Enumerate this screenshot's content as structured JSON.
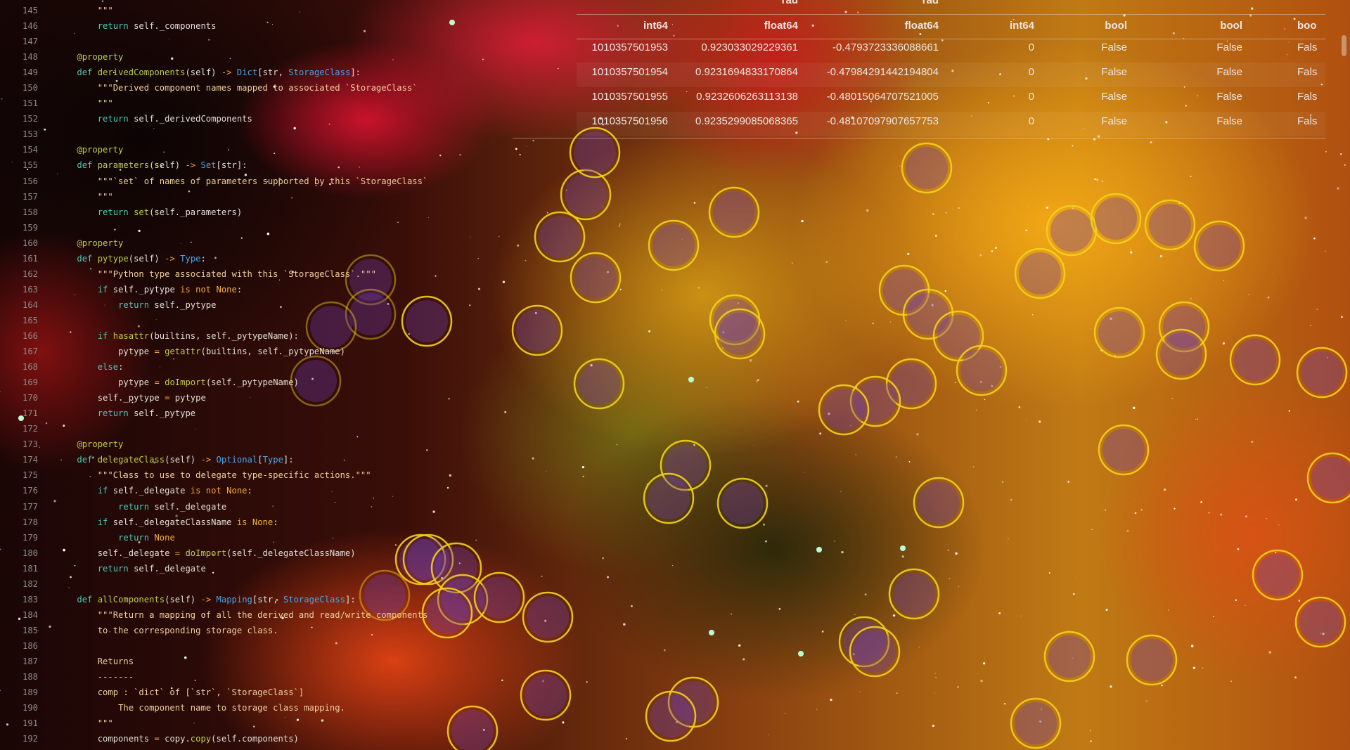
{
  "colors": {
    "keyword": "#4fc7b4",
    "function": "#bccd4a",
    "type": "#4aa3e8",
    "operator": "#f0a436",
    "string": "#efcf9c",
    "text": "#e2ddd6",
    "line_number": "#8d8a86",
    "circle": "#f2d21e"
  },
  "code": {
    "lines": [
      {
        "n": "145",
        "tokens": [
          [
            "        ",
            "plain"
          ],
          [
            "\"\"\"",
            "str"
          ]
        ]
      },
      {
        "n": "146",
        "tokens": [
          [
            "        ",
            "plain"
          ],
          [
            "return",
            "kw"
          ],
          [
            " self._components",
            "plain"
          ]
        ]
      },
      {
        "n": "147",
        "tokens": []
      },
      {
        "n": "148",
        "tokens": [
          [
            "    ",
            "plain"
          ],
          [
            "@property",
            "deco"
          ]
        ]
      },
      {
        "n": "149",
        "tokens": [
          [
            "    ",
            "plain"
          ],
          [
            "def",
            "kw"
          ],
          [
            " ",
            "plain"
          ],
          [
            "derivedComponents",
            "fn"
          ],
          [
            "(self) ",
            "plain"
          ],
          [
            "->",
            "op"
          ],
          [
            " ",
            "plain"
          ],
          [
            "Dict",
            "type"
          ],
          [
            "[str, ",
            "plain"
          ],
          [
            "StorageClass",
            "type"
          ],
          [
            "]:",
            "plain"
          ]
        ]
      },
      {
        "n": "150",
        "tokens": [
          [
            "        ",
            "plain"
          ],
          [
            "\"\"\"Derived component names mapped to associated `StorageClass`",
            "str"
          ]
        ]
      },
      {
        "n": "151",
        "tokens": [
          [
            "        ",
            "plain"
          ],
          [
            "\"\"\"",
            "str"
          ]
        ]
      },
      {
        "n": "152",
        "tokens": [
          [
            "        ",
            "plain"
          ],
          [
            "return",
            "kw"
          ],
          [
            " self._derivedComponents",
            "plain"
          ]
        ]
      },
      {
        "n": "153",
        "tokens": []
      },
      {
        "n": "154",
        "tokens": [
          [
            "    ",
            "plain"
          ],
          [
            "@property",
            "deco"
          ]
        ]
      },
      {
        "n": "155",
        "tokens": [
          [
            "    ",
            "plain"
          ],
          [
            "def",
            "kw"
          ],
          [
            " ",
            "plain"
          ],
          [
            "parameters",
            "fn"
          ],
          [
            "(self) ",
            "plain"
          ],
          [
            "->",
            "op"
          ],
          [
            " ",
            "plain"
          ],
          [
            "Set",
            "type"
          ],
          [
            "[str]:",
            "plain"
          ]
        ]
      },
      {
        "n": "156",
        "tokens": [
          [
            "        ",
            "plain"
          ],
          [
            "\"\"\"`set` of names of parameters supported by this `StorageClass`",
            "str"
          ]
        ]
      },
      {
        "n": "157",
        "tokens": [
          [
            "        ",
            "plain"
          ],
          [
            "\"\"\"",
            "str"
          ]
        ]
      },
      {
        "n": "158",
        "tokens": [
          [
            "        ",
            "plain"
          ],
          [
            "return",
            "kw"
          ],
          [
            " ",
            "plain"
          ],
          [
            "set",
            "fn"
          ],
          [
            "(self._parameters)",
            "plain"
          ]
        ]
      },
      {
        "n": "159",
        "tokens": []
      },
      {
        "n": "160",
        "tokens": [
          [
            "    ",
            "plain"
          ],
          [
            "@property",
            "deco"
          ]
        ]
      },
      {
        "n": "161",
        "tokens": [
          [
            "    ",
            "plain"
          ],
          [
            "def",
            "kw"
          ],
          [
            " ",
            "plain"
          ],
          [
            "pytype",
            "fn"
          ],
          [
            "(self) ",
            "plain"
          ],
          [
            "->",
            "op"
          ],
          [
            " ",
            "plain"
          ],
          [
            "Type",
            "type"
          ],
          [
            ":",
            "plain"
          ]
        ]
      },
      {
        "n": "162",
        "tokens": [
          [
            "        ",
            "plain"
          ],
          [
            "\"\"\"Python type associated with this `StorageClass`.\"\"\"",
            "str"
          ]
        ]
      },
      {
        "n": "163",
        "tokens": [
          [
            "        ",
            "plain"
          ],
          [
            "if",
            "kw"
          ],
          [
            " self._pytype ",
            "plain"
          ],
          [
            "is not",
            "op"
          ],
          [
            " ",
            "plain"
          ],
          [
            "None",
            "const"
          ],
          [
            ":",
            "plain"
          ]
        ]
      },
      {
        "n": "164",
        "tokens": [
          [
            "            ",
            "plain"
          ],
          [
            "return",
            "kw"
          ],
          [
            " self._pytype",
            "plain"
          ]
        ]
      },
      {
        "n": "165",
        "tokens": []
      },
      {
        "n": "166",
        "tokens": [
          [
            "        ",
            "plain"
          ],
          [
            "if",
            "kw"
          ],
          [
            " ",
            "plain"
          ],
          [
            "hasattr",
            "fn"
          ],
          [
            "(builtins, self._pytypeName):",
            "plain"
          ]
        ]
      },
      {
        "n": "167",
        "tokens": [
          [
            "            ",
            "plain"
          ],
          [
            "pytype ",
            "plain"
          ],
          [
            "=",
            "op"
          ],
          [
            " ",
            "plain"
          ],
          [
            "getattr",
            "fn"
          ],
          [
            "(builtins, self._pytypeName)",
            "plain"
          ]
        ]
      },
      {
        "n": "168",
        "tokens": [
          [
            "        ",
            "plain"
          ],
          [
            "else",
            "kw"
          ],
          [
            ":",
            "plain"
          ]
        ]
      },
      {
        "n": "169",
        "tokens": [
          [
            "            ",
            "plain"
          ],
          [
            "pytype ",
            "plain"
          ],
          [
            "=",
            "op"
          ],
          [
            " ",
            "plain"
          ],
          [
            "doImport",
            "fn"
          ],
          [
            "(self._pytypeName)",
            "plain"
          ]
        ]
      },
      {
        "n": "170",
        "tokens": [
          [
            "        ",
            "plain"
          ],
          [
            "self._pytype ",
            "plain"
          ],
          [
            "=",
            "op"
          ],
          [
            " pytype",
            "plain"
          ]
        ]
      },
      {
        "n": "171",
        "tokens": [
          [
            "        ",
            "plain"
          ],
          [
            "return",
            "kw"
          ],
          [
            " self._pytype",
            "plain"
          ]
        ]
      },
      {
        "n": "172",
        "tokens": []
      },
      {
        "n": "173",
        "tokens": [
          [
            "    ",
            "plain"
          ],
          [
            "@property",
            "deco"
          ]
        ]
      },
      {
        "n": "174",
        "tokens": [
          [
            "    ",
            "plain"
          ],
          [
            "def",
            "kw"
          ],
          [
            " ",
            "plain"
          ],
          [
            "delegateClass",
            "fn"
          ],
          [
            "(self) ",
            "plain"
          ],
          [
            "->",
            "op"
          ],
          [
            " ",
            "plain"
          ],
          [
            "Optional",
            "type"
          ],
          [
            "[",
            "plain"
          ],
          [
            "Type",
            "type"
          ],
          [
            "]:",
            "plain"
          ]
        ]
      },
      {
        "n": "175",
        "tokens": [
          [
            "        ",
            "plain"
          ],
          [
            "\"\"\"Class to use to delegate type-specific actions.\"\"\"",
            "str"
          ]
        ]
      },
      {
        "n": "176",
        "tokens": [
          [
            "        ",
            "plain"
          ],
          [
            "if",
            "kw"
          ],
          [
            " self._delegate ",
            "plain"
          ],
          [
            "is not",
            "op"
          ],
          [
            " ",
            "plain"
          ],
          [
            "None",
            "const"
          ],
          [
            ":",
            "plain"
          ]
        ]
      },
      {
        "n": "177",
        "tokens": [
          [
            "            ",
            "plain"
          ],
          [
            "return",
            "kw"
          ],
          [
            " self._delegate",
            "plain"
          ]
        ]
      },
      {
        "n": "178",
        "tokens": [
          [
            "        ",
            "plain"
          ],
          [
            "if",
            "kw"
          ],
          [
            " self._delegateClassName ",
            "plain"
          ],
          [
            "is",
            "op"
          ],
          [
            " ",
            "plain"
          ],
          [
            "None",
            "const"
          ],
          [
            ":",
            "plain"
          ]
        ]
      },
      {
        "n": "179",
        "tokens": [
          [
            "            ",
            "plain"
          ],
          [
            "return",
            "kw"
          ],
          [
            " ",
            "plain"
          ],
          [
            "None",
            "const"
          ]
        ]
      },
      {
        "n": "180",
        "tokens": [
          [
            "        ",
            "plain"
          ],
          [
            "self._delegate ",
            "plain"
          ],
          [
            "=",
            "op"
          ],
          [
            " ",
            "plain"
          ],
          [
            "doImport",
            "fn"
          ],
          [
            "(self._delegateClassName)",
            "plain"
          ]
        ]
      },
      {
        "n": "181",
        "tokens": [
          [
            "        ",
            "plain"
          ],
          [
            "return",
            "kw"
          ],
          [
            " self._delegate",
            "plain"
          ]
        ]
      },
      {
        "n": "182",
        "tokens": []
      },
      {
        "n": "183",
        "tokens": [
          [
            "    ",
            "plain"
          ],
          [
            "def",
            "kw"
          ],
          [
            " ",
            "plain"
          ],
          [
            "allComponents",
            "fn"
          ],
          [
            "(self) ",
            "plain"
          ],
          [
            "->",
            "op"
          ],
          [
            " ",
            "plain"
          ],
          [
            "Mapping",
            "type"
          ],
          [
            "[str, ",
            "plain"
          ],
          [
            "StorageClass",
            "type"
          ],
          [
            "]:",
            "plain"
          ]
        ]
      },
      {
        "n": "184",
        "tokens": [
          [
            "        ",
            "plain"
          ],
          [
            "\"\"\"Return a mapping of all the derived and read/write components",
            "str"
          ]
        ]
      },
      {
        "n": "185",
        "tokens": [
          [
            "        ",
            "plain"
          ],
          [
            "to the corresponding storage class.",
            "str"
          ]
        ]
      },
      {
        "n": "186",
        "tokens": []
      },
      {
        "n": "187",
        "tokens": [
          [
            "        ",
            "plain"
          ],
          [
            "Returns",
            "str"
          ]
        ]
      },
      {
        "n": "188",
        "tokens": [
          [
            "        ",
            "plain"
          ],
          [
            "-------",
            "str"
          ]
        ]
      },
      {
        "n": "189",
        "tokens": [
          [
            "        ",
            "plain"
          ],
          [
            "comp : `dict` of [`str`, `StorageClass`]",
            "str"
          ]
        ]
      },
      {
        "n": "190",
        "tokens": [
          [
            "            ",
            "plain"
          ],
          [
            "The component name to storage class mapping.",
            "str"
          ]
        ]
      },
      {
        "n": "191",
        "tokens": [
          [
            "        ",
            "plain"
          ],
          [
            "\"\"\"",
            "str"
          ]
        ]
      },
      {
        "n": "192",
        "tokens": [
          [
            "        ",
            "plain"
          ],
          [
            "components ",
            "plain"
          ],
          [
            "=",
            "op"
          ],
          [
            " copy.",
            "plain"
          ],
          [
            "copy",
            "fn"
          ],
          [
            "(self.components)",
            "plain"
          ]
        ]
      }
    ]
  },
  "table": {
    "units": [
      "",
      "rad",
      "rad",
      "",
      "",
      "",
      ""
    ],
    "dtypes": [
      "int64",
      "float64",
      "float64",
      "int64",
      "bool",
      "bool",
      "boo"
    ],
    "rows": [
      [
        "1010357501953",
        "0.923033029229361",
        "-0.4793723336088661",
        "0",
        "False",
        "False",
        "Fals"
      ],
      [
        "1010357501954",
        "0.9231694833170864",
        "-0.47984291442194804",
        "0",
        "False",
        "False",
        "Fals"
      ],
      [
        "1010357501955",
        "0.9232606263113138",
        "-0.48015064707521005",
        "0",
        "False",
        "False",
        "Fals"
      ],
      [
        "1010357501956",
        "0.9235299085068365",
        "-0.48107097907657753",
        "0",
        "False",
        "False",
        "Fals"
      ]
    ]
  }
}
